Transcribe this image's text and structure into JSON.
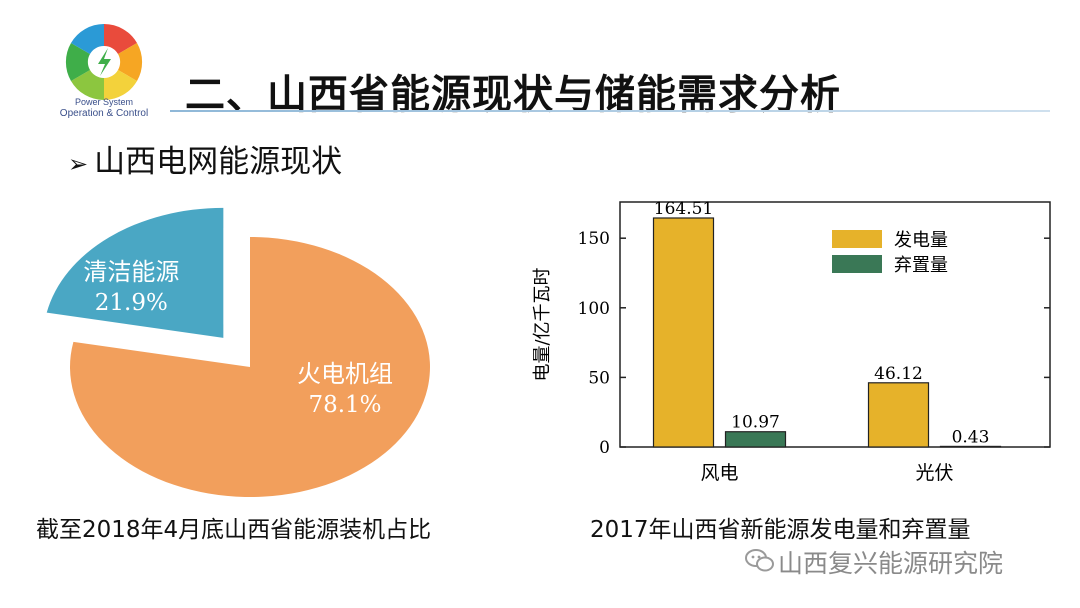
{
  "header": {
    "logo_lines": [
      "Power System",
      "Operation & Control"
    ],
    "title": "二、山西省能源现状与储能需求分析"
  },
  "section": {
    "bullet": "➢",
    "heading": "山西电网能源现状"
  },
  "colors": {
    "pie_clean": "#4aa7c4",
    "pie_thermal": "#f29f5c",
    "bar_generation": "#e6b22a",
    "bar_curtailment": "#3a7856"
  },
  "chart_data": [
    {
      "type": "pie",
      "caption": "截至2018年4月底山西省能源装机占比",
      "slices": [
        {
          "label": "火电机组",
          "value": 78.1,
          "value_text": "78.1%",
          "color": "#f29f5c"
        },
        {
          "label": "清洁能源",
          "value": 21.9,
          "value_text": "21.9%",
          "color": "#4aa7c4",
          "exploded": true
        }
      ]
    },
    {
      "type": "bar",
      "caption": "2017年山西省新能源发电量和弃置量",
      "categories": [
        "风电",
        "光伏"
      ],
      "series": [
        {
          "name": "发电量",
          "values": [
            164.51,
            46.12
          ],
          "labels": [
            "164.51",
            "46.12"
          ],
          "color": "#e6b22a"
        },
        {
          "name": "弃置量",
          "values": [
            10.97,
            0.43
          ],
          "labels": [
            "10.97",
            "0.43"
          ],
          "color": "#3a7856"
        }
      ],
      "ylabel": "电量/亿千瓦时",
      "ylim": [
        0,
        176
      ],
      "yticks": [
        0,
        50,
        100,
        150
      ],
      "legend": "top-right"
    }
  ],
  "watermark": "山西复兴能源研究院"
}
